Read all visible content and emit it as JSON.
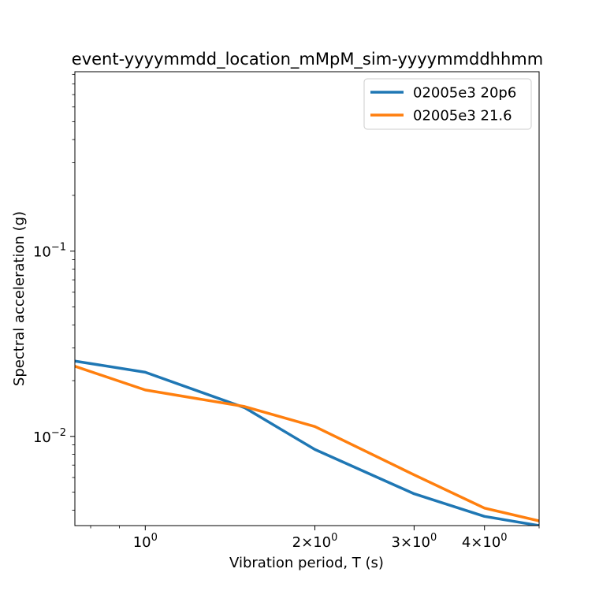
{
  "chart_data": {
    "type": "line",
    "title": "event-yyyymmdd_location_mMpM_sim-yyyymmddhhmm",
    "xlabel": "Vibration period, T (s)",
    "ylabel": "Spectral acceleration (g)",
    "xscale": "log",
    "yscale": "log",
    "xlim": [
      0.75,
      5.0
    ],
    "ylim": [
      0.0033,
      0.93
    ],
    "xticks": [
      {
        "value": 1,
        "base": "10",
        "exp": "0",
        "coef": ""
      },
      {
        "value": 2,
        "base": "10",
        "exp": "0",
        "coef": "2"
      },
      {
        "value": 3,
        "base": "10",
        "exp": "0",
        "coef": "3"
      },
      {
        "value": 4,
        "base": "10",
        "exp": "0",
        "coef": "4"
      }
    ],
    "yticks": [
      {
        "value": 0.01,
        "base": "10",
        "exp": "−2"
      },
      {
        "value": 0.1,
        "base": "10",
        "exp": "−1"
      }
    ],
    "legend_position": "top-right",
    "grid": false,
    "series": [
      {
        "name": "02005e3 20p6",
        "color": "#1f77b4",
        "x": [
          0.75,
          1.0,
          1.5,
          2.0,
          3.0,
          4.0,
          5.0
        ],
        "y": [
          0.0255,
          0.0222,
          0.0143,
          0.0085,
          0.0049,
          0.0037,
          0.0033
        ]
      },
      {
        "name": "02005e3 21.6",
        "color": "#ff7f0e",
        "x": [
          0.75,
          1.0,
          1.5,
          2.0,
          3.0,
          4.0,
          5.0
        ],
        "y": [
          0.0239,
          0.0178,
          0.0145,
          0.0113,
          0.0062,
          0.0041,
          0.0035
        ]
      }
    ]
  }
}
